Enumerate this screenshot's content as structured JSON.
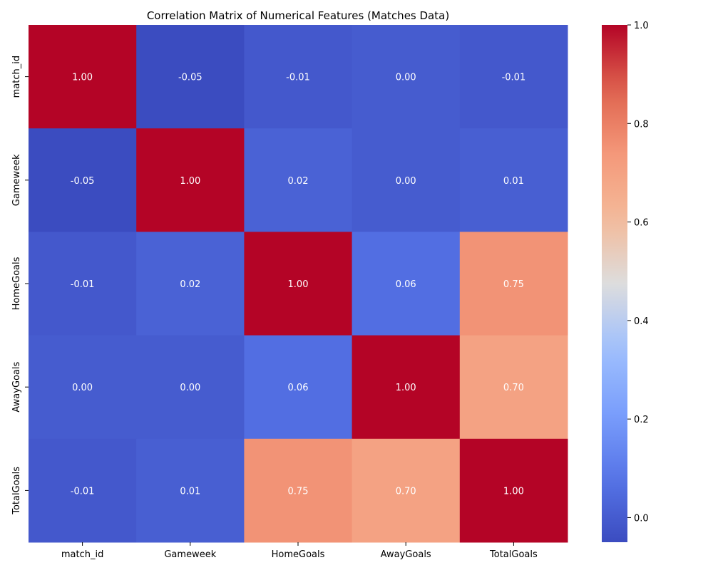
{
  "chart_data": {
    "type": "heatmap",
    "title": "Correlation Matrix of Numerical Features (Matches Data)",
    "xlabel": "",
    "ylabel": "",
    "x_categories": [
      "match_id",
      "Gameweek",
      "HomeGoals",
      "AwayGoals",
      "TotalGoals"
    ],
    "y_categories": [
      "match_id",
      "Gameweek",
      "HomeGoals",
      "AwayGoals",
      "TotalGoals"
    ],
    "values": [
      [
        1.0,
        -0.05,
        -0.01,
        -0.0,
        -0.01
      ],
      [
        -0.05,
        1.0,
        0.02,
        -0.0,
        0.01
      ],
      [
        -0.01,
        0.02,
        1.0,
        0.06,
        0.75
      ],
      [
        -0.0,
        -0.0,
        0.06,
        1.0,
        0.7
      ],
      [
        -0.01,
        0.01,
        0.75,
        0.7,
        1.0
      ]
    ],
    "annotation_format": "0.00",
    "colormap": "coolwarm",
    "vmin": -0.05,
    "vmax": 1.0,
    "colorbar_ticks": [
      "0.0",
      "0.2",
      "0.4",
      "0.6",
      "0.8",
      "1.0"
    ],
    "colorbar_tick_values": [
      0.0,
      0.2,
      0.4,
      0.6,
      0.8,
      1.0
    ],
    "grid": false,
    "legend": "colorbar-right"
  }
}
